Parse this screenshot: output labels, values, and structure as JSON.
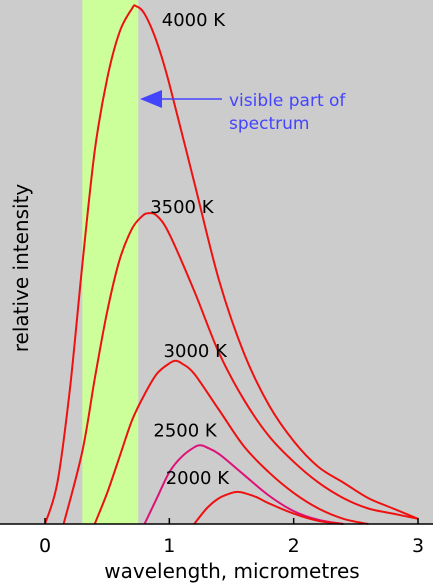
{
  "chart_data": {
    "type": "line",
    "xlabel": "wavelength, micrometres",
    "ylabel": "relative intensity",
    "xlim": [
      0,
      3
    ],
    "ylim": [
      0,
      1
    ],
    "xticks": [
      "0",
      "1",
      "2",
      "3"
    ],
    "grid": false,
    "legend": "none",
    "background_color": "#cccccc",
    "band": {
      "x_start": 0.3,
      "x_end": 0.75,
      "color": "#ccff99",
      "annotation": "visible part of spectrum",
      "annotation_lines": [
        "visible part of",
        "spectrum"
      ],
      "annotation_color": "#4444ff"
    },
    "series": [
      {
        "name": "4000 K",
        "color": "#ee1111",
        "x": [
          0.0,
          0.1,
          0.2,
          0.3,
          0.4,
          0.5,
          0.6,
          0.7,
          0.73,
          0.8,
          0.9,
          1.0,
          1.2,
          1.4,
          1.6,
          1.8,
          2.0,
          2.2,
          2.4,
          2.6,
          2.8,
          3.0
        ],
        "y": [
          0.0,
          0.08,
          0.26,
          0.5,
          0.72,
          0.86,
          0.95,
          0.995,
          1.0,
          0.985,
          0.93,
          0.85,
          0.66,
          0.47,
          0.33,
          0.23,
          0.16,
          0.11,
          0.08,
          0.05,
          0.03,
          0.01
        ]
      },
      {
        "name": "3500 K",
        "color": "#ee1111",
        "x": [
          0.15,
          0.3,
          0.4,
          0.5,
          0.6,
          0.7,
          0.78,
          0.83,
          0.9,
          1.0,
          1.2,
          1.4,
          1.6,
          1.8,
          2.0,
          2.2,
          2.4,
          2.6,
          2.8,
          3.0
        ],
        "y": [
          0.0,
          0.14,
          0.28,
          0.41,
          0.51,
          0.57,
          0.594,
          0.6,
          0.595,
          0.56,
          0.45,
          0.33,
          0.24,
          0.17,
          0.12,
          0.08,
          0.05,
          0.03,
          0.02,
          0.01
        ]
      },
      {
        "name": "3000 K",
        "color": "#ee1111",
        "x": [
          0.4,
          0.5,
          0.6,
          0.7,
          0.8,
          0.9,
          1.0,
          1.05,
          1.1,
          1.2,
          1.4,
          1.6,
          1.8,
          2.0,
          2.2,
          2.4,
          2.6
        ],
        "y": [
          0.0,
          0.06,
          0.13,
          0.2,
          0.25,
          0.29,
          0.31,
          0.315,
          0.31,
          0.29,
          0.22,
          0.15,
          0.1,
          0.06,
          0.03,
          0.01,
          0.0
        ]
      },
      {
        "name": "2500 K",
        "color": "#dd1177",
        "x": [
          0.8,
          0.9,
          1.0,
          1.1,
          1.2,
          1.25,
          1.3,
          1.4,
          1.6,
          1.8,
          2.0,
          2.2,
          2.4
        ],
        "y": [
          0.0,
          0.05,
          0.1,
          0.13,
          0.148,
          0.152,
          0.148,
          0.135,
          0.095,
          0.055,
          0.025,
          0.008,
          0.0
        ]
      },
      {
        "name": "2000 K",
        "color": "#ee1111",
        "x": [
          1.2,
          1.3,
          1.4,
          1.5,
          1.55,
          1.6,
          1.7,
          1.8,
          2.0,
          2.2,
          2.4
        ],
        "y": [
          0.0,
          0.03,
          0.05,
          0.06,
          0.062,
          0.06,
          0.052,
          0.04,
          0.02,
          0.006,
          0.0
        ]
      }
    ]
  }
}
